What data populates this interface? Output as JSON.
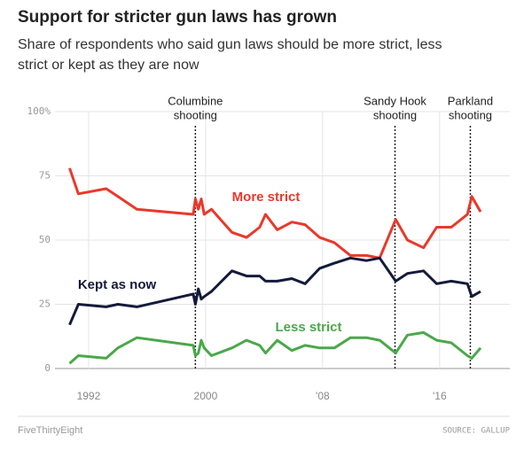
{
  "chart_data": {
    "type": "line",
    "title": "Support for stricter gun laws has grown",
    "subtitle": [
      "Share of respondents who said gun laws should be more strict, less",
      "strict or kept as they are now"
    ],
    "x": [
      1990.7,
      1991.3,
      1993.2,
      1994,
      1995.3,
      1999.15,
      1999.3,
      1999.5,
      1999.7,
      1999.9,
      2000.4,
      2001.8,
      2002.8,
      2003.7,
      2004.1,
      2004.9,
      2005.9,
      2006.8,
      2007.8,
      2008.8,
      2009.9,
      2011,
      2011.9,
      2013,
      2013.8,
      2014.9,
      2015.8,
      2016.8,
      2017.9,
      2018.2,
      2018.8
    ],
    "series": [
      {
        "name": "More strict",
        "color": "#e8392b",
        "values": [
          78,
          68,
          70,
          67,
          62,
          60,
          66,
          62,
          66,
          60,
          62,
          53,
          51,
          55,
          60,
          54,
          57,
          56,
          51,
          49,
          44,
          44,
          43,
          58,
          50,
          47,
          55,
          55,
          60,
          67,
          61
        ]
      },
      {
        "name": "Kept as now",
        "color": "#141a3a",
        "values": [
          17,
          25,
          24,
          25,
          24,
          29,
          25,
          31,
          27,
          28,
          30,
          38,
          36,
          36,
          34,
          34,
          35,
          33,
          39,
          41,
          43,
          42,
          43,
          34,
          37,
          38,
          33,
          34,
          33,
          28,
          30
        ]
      },
      {
        "name": "Less strict",
        "color": "#4aa84a",
        "values": [
          2,
          5,
          4,
          8,
          12,
          9,
          5,
          6,
          11,
          8,
          5,
          8,
          11,
          9,
          6,
          11,
          7,
          9,
          8,
          8,
          12,
          12,
          11,
          6,
          13,
          14,
          11,
          10,
          5,
          4,
          8
        ]
      }
    ],
    "xlim": [
      1989.7,
      2020.8
    ],
    "xticks": [
      1992,
      2000,
      {
        "value": 2008,
        "label": "'08"
      },
      {
        "value": 2016,
        "label": "'16"
      }
    ],
    "ylim": [
      0,
      100
    ],
    "yticks": [
      0,
      25,
      50,
      75,
      {
        "value": 100,
        "label": "100%"
      }
    ],
    "grid": true,
    "annotations": [
      {
        "x": 1999.3,
        "lines": [
          "Columbine",
          "shooting"
        ]
      },
      {
        "x": 2012.95,
        "lines": [
          "Sandy Hook",
          "shooting"
        ]
      },
      {
        "x": 2018.1,
        "lines": [
          "Parkland",
          "shooting"
        ]
      }
    ],
    "credit": "FiveThirtyEight",
    "source": "SOURCE: GALLUP"
  }
}
